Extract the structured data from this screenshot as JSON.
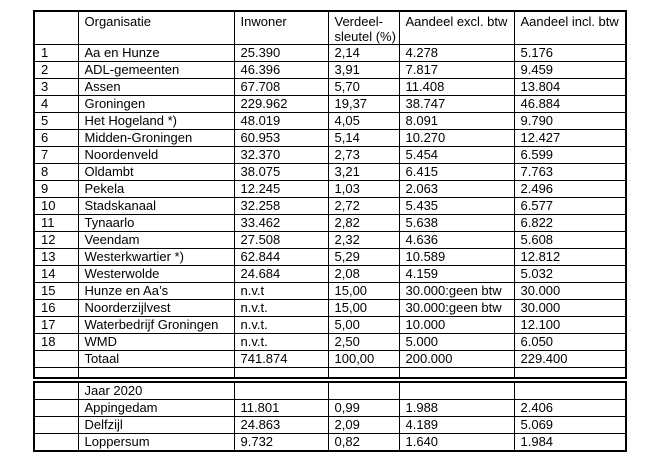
{
  "page": {
    "background": "#ffffff",
    "text_color": "#000000",
    "border_color": "#000000"
  },
  "main_table": {
    "header": [
      "",
      "Organisatie",
      "Inwoner",
      "Verdeel-\nsleutel (%)",
      "Aandeel excl. btw",
      "Aandeel incl. btw"
    ],
    "rows": [
      [
        "1",
        "Aa en Hunze",
        "25.390",
        "2,14",
        "4.278",
        "5.176"
      ],
      [
        "2",
        "ADL-gemeenten",
        "46.396",
        "3,91",
        "7.817",
        "9.459"
      ],
      [
        "3",
        "Assen",
        "67.708",
        "5,70",
        "11.408",
        "13.804"
      ],
      [
        "4",
        "Groningen",
        "229.962",
        "19,37",
        "38.747",
        "46.884"
      ],
      [
        "5",
        "Het Hogeland *)",
        "48.019",
        "4,05",
        "8.091",
        "9.790"
      ],
      [
        "6",
        "Midden-Groningen",
        "60.953",
        "5,14",
        "10.270",
        "12.427"
      ],
      [
        "7",
        "Noordenveld",
        "32.370",
        "2,73",
        "5.454",
        "6.599"
      ],
      [
        "8",
        "Oldambt",
        "38.075",
        "3,21",
        "6.415",
        "7.763"
      ],
      [
        "9",
        "Pekela",
        "12.245",
        "1,03",
        "2.063",
        "2.496"
      ],
      [
        "10",
        "Stadskanaal",
        "32.258",
        "2,72",
        "5.435",
        "6.577"
      ],
      [
        "11",
        "Tynaarlo",
        "33.462",
        "2,82",
        "5.638",
        "6.822"
      ],
      [
        "12",
        "Veendam",
        "27.508",
        "2,32",
        "4.636",
        "5.608"
      ],
      [
        "13",
        "Westerkwartier *)",
        "62.844",
        "5,29",
        "10.589",
        "12.812"
      ],
      [
        "14",
        "Westerwolde",
        "24.684",
        "2,08",
        "4.159",
        "5.032"
      ],
      [
        "15",
        "Hunze en Aa’s",
        "n.v.t",
        "15,00",
        "30.000:geen btw",
        "30.000"
      ],
      [
        "16",
        "Noorderzijlvest",
        "n.v.t.",
        "15,00",
        "30.000:geen btw",
        "30.000"
      ],
      [
        "17",
        "Waterbedrijf Groningen",
        "n.v.t.",
        "5,00",
        "10.000",
        "12.100"
      ],
      [
        "18",
        "WMD",
        "n.v.t.",
        "2,50",
        "5.000",
        "6.050"
      ],
      [
        "",
        "Totaal",
        "741.874",
        "100,00",
        "200.000",
        "229.400"
      ],
      [
        "",
        "",
        "",
        "",
        "",
        ""
      ]
    ]
  },
  "year_table": {
    "rows": [
      [
        "",
        "Jaar 2020",
        "",
        "",
        "",
        ""
      ],
      [
        "",
        "Appingedam",
        "11.801",
        "0,99",
        "1.988",
        "2.406"
      ],
      [
        "",
        "Delfzijl",
        "24.863",
        "2,09",
        "4.189",
        "5.069"
      ],
      [
        "",
        "Loppersum",
        "9.732",
        "0,82",
        "1.640",
        "1.984"
      ]
    ]
  }
}
